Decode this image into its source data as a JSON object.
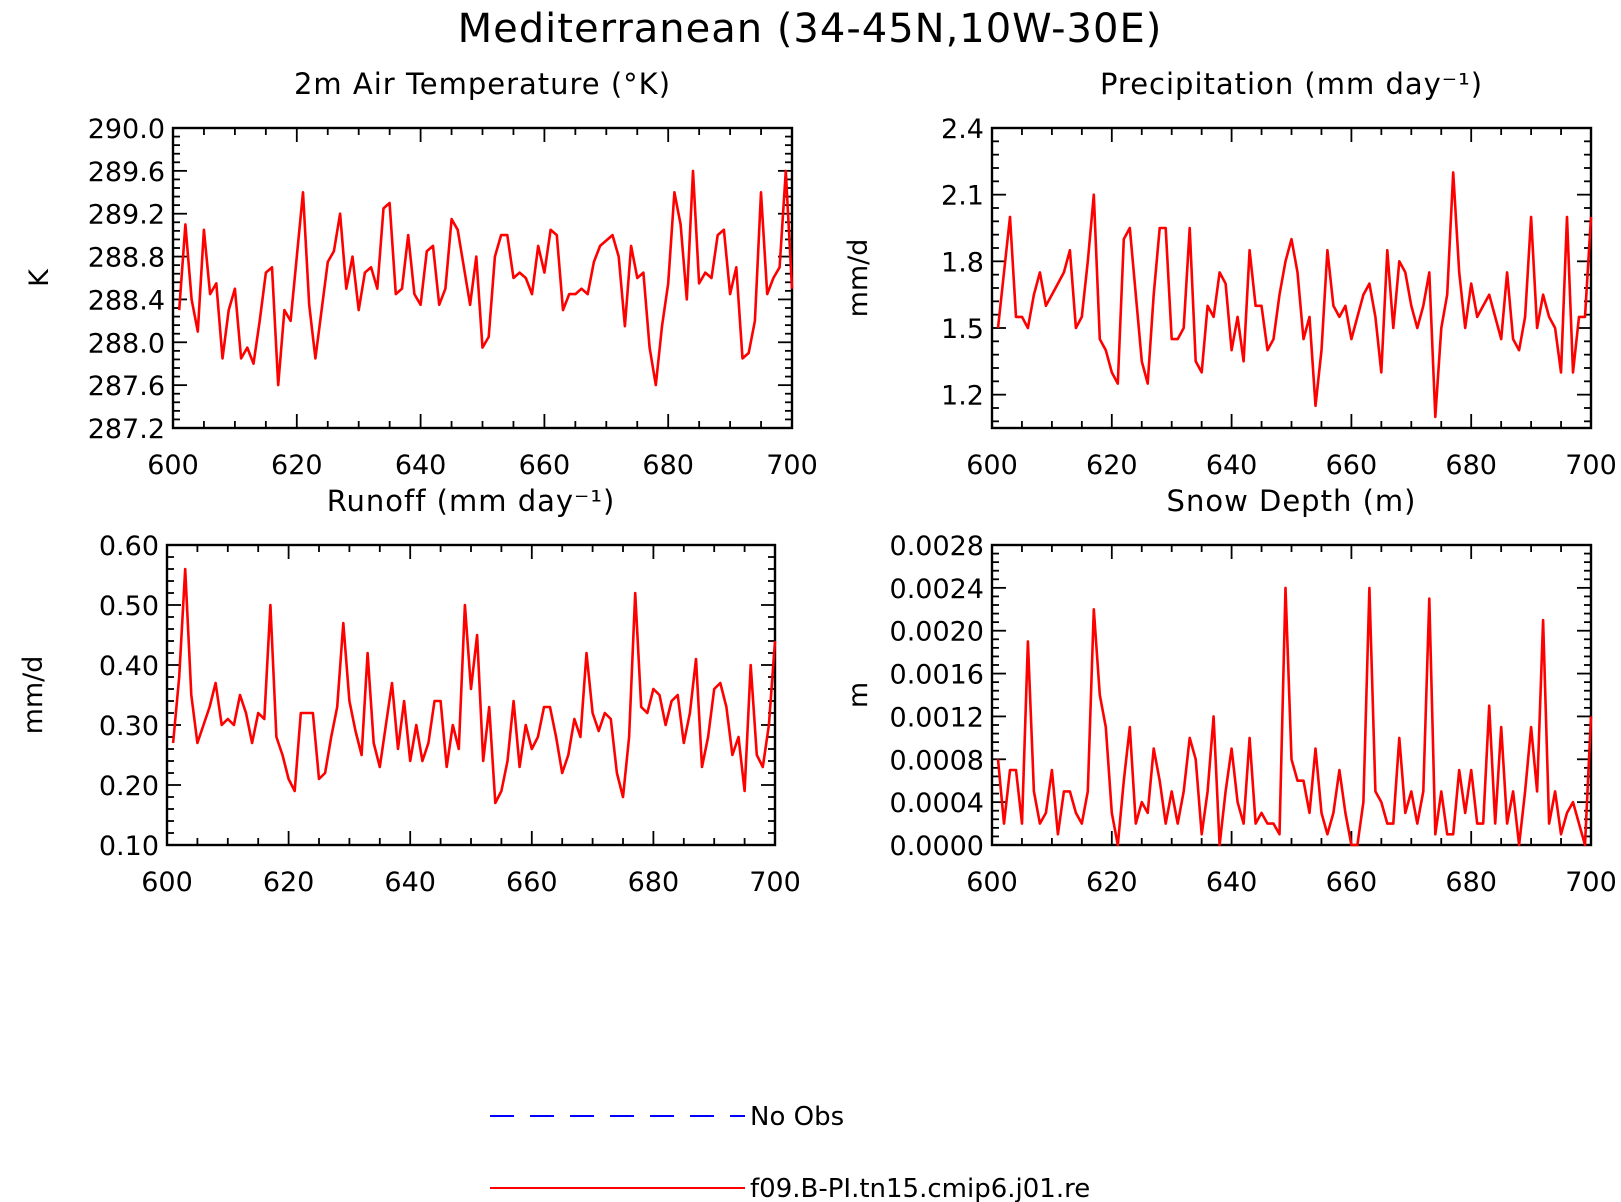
{
  "title": "Mediterranean (34-45N,10W-30E)",
  "chart_data": [
    {
      "type": "line",
      "title": "2m Air Temperature (°K)",
      "ylabel": "K",
      "xlim": [
        600,
        700
      ],
      "ylim": [
        287.2,
        290.0
      ],
      "xticks": [
        "600",
        "620",
        "640",
        "660",
        "680",
        "700"
      ],
      "yticks": [
        "287.2",
        "287.6",
        "288.0",
        "288.4",
        "288.8",
        "289.2",
        "289.6",
        "290.0"
      ],
      "series": [
        {
          "name": "f09.B-PI.tn15.cmip6.j01.re",
          "color": "#ff0000",
          "x_start": 601,
          "values": [
            288.3,
            289.1,
            288.4,
            288.1,
            289.05,
            288.45,
            288.55,
            287.85,
            288.3,
            288.5,
            287.85,
            287.95,
            287.8,
            288.2,
            288.65,
            288.7,
            287.6,
            288.3,
            288.2,
            288.8,
            289.4,
            288.35,
            287.85,
            288.3,
            288.75,
            288.85,
            289.2,
            288.5,
            288.8,
            288.3,
            288.65,
            288.7,
            288.5,
            289.25,
            289.3,
            288.45,
            288.5,
            289.0,
            288.45,
            288.35,
            288.85,
            288.9,
            288.35,
            288.5,
            289.15,
            289.05,
            288.7,
            288.35,
            288.8,
            287.95,
            288.05,
            288.8,
            289.0,
            289.0,
            288.6,
            288.65,
            288.6,
            288.45,
            288.9,
            288.65,
            289.05,
            289.0,
            288.3,
            288.45,
            288.45,
            288.5,
            288.45,
            288.75,
            288.9,
            288.95,
            289.0,
            288.8,
            288.15,
            288.9,
            288.6,
            288.65,
            287.95,
            287.6,
            288.15,
            288.55,
            289.4,
            289.1,
            288.4,
            289.6,
            288.55,
            288.65,
            288.6,
            289.0,
            289.05,
            288.45,
            288.7,
            287.85,
            287.9,
            288.2,
            289.4,
            288.45,
            288.6,
            288.7,
            289.6,
            288.5
          ]
        }
      ]
    },
    {
      "type": "line",
      "title": "Precipitation (mm day⁻¹)",
      "ylabel": "mm/d",
      "xlim": [
        600,
        700
      ],
      "ylim": [
        1.05,
        2.4
      ],
      "xticks": [
        "600",
        "620",
        "640",
        "660",
        "680",
        "700"
      ],
      "yticks": [
        "1.2",
        "1.5",
        "1.8",
        "2.1",
        "2.4"
      ],
      "series": [
        {
          "name": "f09.B-PI.tn15.cmip6.j01.re",
          "color": "#ff0000",
          "x_start": 601,
          "values": [
            1.5,
            1.75,
            2.0,
            1.55,
            1.55,
            1.5,
            1.65,
            1.75,
            1.6,
            1.65,
            1.7,
            1.75,
            1.85,
            1.5,
            1.55,
            1.8,
            2.1,
            1.45,
            1.4,
            1.3,
            1.25,
            1.9,
            1.95,
            1.65,
            1.35,
            1.25,
            1.65,
            1.95,
            1.95,
            1.45,
            1.45,
            1.5,
            1.95,
            1.35,
            1.3,
            1.6,
            1.55,
            1.75,
            1.7,
            1.4,
            1.55,
            1.35,
            1.85,
            1.6,
            1.6,
            1.4,
            1.45,
            1.65,
            1.8,
            1.9,
            1.75,
            1.45,
            1.55,
            1.15,
            1.4,
            1.85,
            1.6,
            1.55,
            1.6,
            1.45,
            1.55,
            1.65,
            1.7,
            1.55,
            1.3,
            1.85,
            1.5,
            1.8,
            1.75,
            1.6,
            1.5,
            1.6,
            1.75,
            1.1,
            1.5,
            1.65,
            2.2,
            1.75,
            1.5,
            1.7,
            1.55,
            1.6,
            1.65,
            1.55,
            1.45,
            1.75,
            1.45,
            1.4,
            1.55,
            2.0,
            1.5,
            1.65,
            1.55,
            1.5,
            1.3,
            2.0,
            1.3,
            1.55,
            1.55,
            2.0
          ]
        }
      ]
    },
    {
      "type": "line",
      "title": "Runoff (mm day⁻¹)",
      "ylabel": "mm/d",
      "xlim": [
        600,
        700
      ],
      "ylim": [
        0.1,
        0.6
      ],
      "xticks": [
        "600",
        "620",
        "640",
        "660",
        "680",
        "700"
      ],
      "yticks": [
        "0.10",
        "0.20",
        "0.30",
        "0.40",
        "0.50",
        "0.60"
      ],
      "series": [
        {
          "name": "f09.B-PI.tn15.cmip6.j01.re",
          "color": "#ff0000",
          "x_start": 601,
          "values": [
            0.27,
            0.38,
            0.56,
            0.35,
            0.27,
            0.3,
            0.33,
            0.37,
            0.3,
            0.31,
            0.3,
            0.35,
            0.32,
            0.27,
            0.32,
            0.31,
            0.5,
            0.28,
            0.25,
            0.21,
            0.19,
            0.32,
            0.32,
            0.32,
            0.21,
            0.22,
            0.28,
            0.33,
            0.47,
            0.34,
            0.29,
            0.25,
            0.42,
            0.27,
            0.23,
            0.3,
            0.37,
            0.26,
            0.34,
            0.24,
            0.3,
            0.24,
            0.27,
            0.34,
            0.34,
            0.23,
            0.3,
            0.26,
            0.5,
            0.36,
            0.45,
            0.24,
            0.33,
            0.17,
            0.19,
            0.24,
            0.34,
            0.23,
            0.3,
            0.26,
            0.28,
            0.33,
            0.33,
            0.28,
            0.22,
            0.25,
            0.31,
            0.28,
            0.42,
            0.32,
            0.29,
            0.32,
            0.31,
            0.22,
            0.18,
            0.28,
            0.52,
            0.33,
            0.32,
            0.36,
            0.35,
            0.3,
            0.34,
            0.35,
            0.27,
            0.32,
            0.41,
            0.23,
            0.28,
            0.36,
            0.37,
            0.33,
            0.25,
            0.28,
            0.19,
            0.4,
            0.25,
            0.23,
            0.3,
            0.44
          ]
        }
      ]
    },
    {
      "type": "line",
      "title": "Snow Depth (m)",
      "ylabel": "m",
      "xlim": [
        600,
        700
      ],
      "ylim": [
        0.0,
        0.0028
      ],
      "xticks": [
        "600",
        "620",
        "640",
        "660",
        "680",
        "700"
      ],
      "yticks": [
        "0.0000",
        "0.0004",
        "0.0008",
        "0.0012",
        "0.0016",
        "0.0020",
        "0.0024",
        "0.0028"
      ],
      "series": [
        {
          "name": "f09.B-PI.tn15.cmip6.j01.re",
          "color": "#ff0000",
          "x_start": 601,
          "values": [
            0.0008,
            0.0002,
            0.0007,
            0.0007,
            0.0002,
            0.0019,
            0.0005,
            0.0002,
            0.0003,
            0.0007,
            0.0001,
            0.0005,
            0.0005,
            0.0003,
            0.0002,
            0.0005,
            0.0022,
            0.0014,
            0.0011,
            0.0003,
            0.0,
            0.0006,
            0.0011,
            0.0002,
            0.0004,
            0.0003,
            0.0009,
            0.0006,
            0.0002,
            0.0005,
            0.0002,
            0.0005,
            0.001,
            0.0008,
            0.0001,
            0.0005,
            0.0012,
            0.0,
            0.0005,
            0.0009,
            0.0004,
            0.0002,
            0.001,
            0.0002,
            0.0003,
            0.0002,
            0.0002,
            0.0001,
            0.0024,
            0.0008,
            0.0006,
            0.0006,
            0.0003,
            0.0009,
            0.0003,
            0.0001,
            0.0003,
            0.0007,
            0.0003,
            0.0,
            0.0,
            0.0004,
            0.0024,
            0.0005,
            0.0004,
            0.0002,
            0.0002,
            0.001,
            0.0003,
            0.0005,
            0.0002,
            0.0005,
            0.0023,
            0.0001,
            0.0005,
            0.0001,
            0.0001,
            0.0007,
            0.0003,
            0.0007,
            0.0002,
            0.0002,
            0.0013,
            0.0002,
            0.0011,
            0.0002,
            0.0005,
            0.0,
            0.0005,
            0.0011,
            0.0005,
            0.0021,
            0.0002,
            0.0005,
            0.0001,
            0.0003,
            0.0004,
            0.0002,
            0.0,
            0.0012
          ]
        }
      ]
    }
  ],
  "legend": [
    {
      "label": "No Obs",
      "color": "#0000ff",
      "style": "dashed"
    },
    {
      "label": "f09.B-PI.tn15.cmip6.j01.re",
      "color": "#ff0000",
      "style": "solid"
    }
  ]
}
